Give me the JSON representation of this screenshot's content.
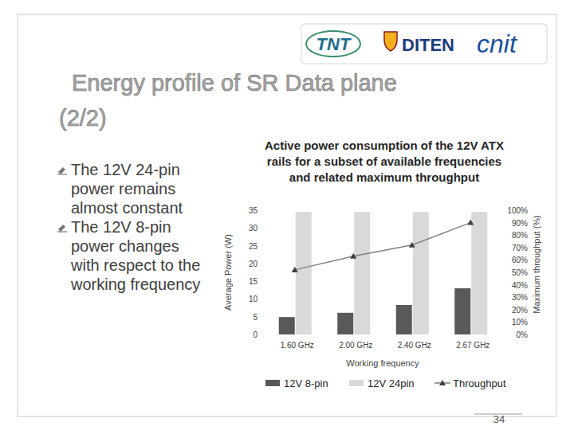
{
  "slide": {
    "logos": [
      "TNT",
      "DITEN",
      "cnit"
    ],
    "title": [
      "Energy profile of SR Data plane",
      "(2/2)"
    ],
    "bullets": [
      [
        "The 12V 24-pin",
        "power remains",
        "almost constant"
      ],
      [
        "The 12V 8-pin",
        "power changes",
        "with respect to the",
        "working frequency"
      ]
    ],
    "page_number": 34
  },
  "chart_data": {
    "type": "bar",
    "title": [
      "Active power consumption of the 12V ATX",
      "rails for a subset of available frequencies",
      "and related maximum throughput"
    ],
    "x_label": "Working frequency",
    "y_label": "Average Power (W)",
    "y2_label": "Maximum throughput (%)",
    "categories": [
      "1.60 GHz",
      "2.00 GHz",
      "2.40 GHz",
      "2.67 GHz"
    ],
    "series": [
      {
        "name": "12V 8-pin",
        "type": "bar",
        "color": "#595959",
        "values": [
          4.9,
          6.1,
          8.3,
          13.0
        ]
      },
      {
        "name": "12V 24pin",
        "type": "bar",
        "color": "#d9d9d9",
        "values": [
          34.5,
          34.5,
          34.5,
          34.5
        ]
      },
      {
        "name": "Throughput",
        "type": "line",
        "axis": "y2",
        "color": "#808080",
        "marker": "triangle",
        "values": [
          52,
          63,
          72,
          90
        ]
      }
    ],
    "ylim": [
      0,
      35
    ],
    "yticks": [
      0,
      5,
      10,
      15,
      20,
      25,
      30,
      35
    ],
    "y2lim": [
      0,
      100
    ],
    "y2ticks": [
      {
        "value": 0,
        "label": "0%"
      },
      {
        "value": 10,
        "label": "10%"
      },
      {
        "value": 20,
        "label": "20%"
      },
      {
        "value": 30,
        "label": "30%"
      },
      {
        "value": 40,
        "label": "40%"
      },
      {
        "value": 50,
        "label": "50%"
      },
      {
        "value": 60,
        "label": "60%"
      },
      {
        "value": 70,
        "label": "70%"
      },
      {
        "value": 80,
        "label": "80%"
      },
      {
        "value": 90,
        "label": "90%"
      },
      {
        "value": 100,
        "label": "100%"
      }
    ],
    "grid": false,
    "legend": "bottom"
  }
}
